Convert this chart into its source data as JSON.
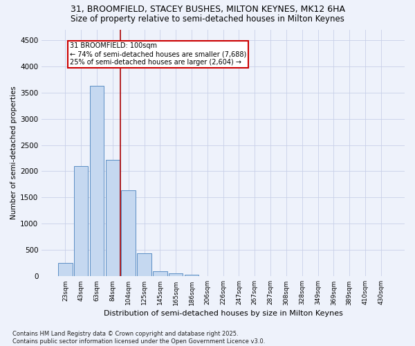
{
  "title_line1": "31, BROOMFIELD, STACEY BUSHES, MILTON KEYNES, MK12 6HA",
  "title_line2": "Size of property relative to semi-detached houses in Milton Keynes",
  "xlabel": "Distribution of semi-detached houses by size in Milton Keynes",
  "ylabel": "Number of semi-detached properties",
  "categories": [
    "23sqm",
    "43sqm",
    "63sqm",
    "84sqm",
    "104sqm",
    "125sqm",
    "145sqm",
    "165sqm",
    "186sqm",
    "206sqm",
    "226sqm",
    "247sqm",
    "267sqm",
    "287sqm",
    "308sqm",
    "328sqm",
    "349sqm",
    "369sqm",
    "389sqm",
    "410sqm",
    "430sqm"
  ],
  "values": [
    250,
    2100,
    3620,
    2220,
    1640,
    440,
    100,
    55,
    30,
    5,
    2,
    1,
    0,
    0,
    0,
    0,
    0,
    0,
    0,
    0,
    0
  ],
  "bar_color": "#c5d8f0",
  "bar_edge_color": "#5b8ec4",
  "annotation_title": "31 BROOMFIELD: 100sqm",
  "annotation_line1": "← 74% of semi-detached houses are smaller (7,688)",
  "annotation_line2": "25% of semi-detached houses are larger (2,604) →",
  "ylim": [
    0,
    4700
  ],
  "yticks": [
    0,
    500,
    1000,
    1500,
    2000,
    2500,
    3000,
    3500,
    4000,
    4500
  ],
  "footer_line1": "Contains HM Land Registry data © Crown copyright and database right 2025.",
  "footer_line2": "Contains public sector information licensed under the Open Government Licence v3.0.",
  "bg_color": "#eef2fb",
  "grid_color": "#c8d0e8",
  "annotation_box_color": "#ffffff",
  "annotation_box_edge": "#cc0000",
  "red_line_color": "#aa0000",
  "title_fontsize": 9,
  "subtitle_fontsize": 8.5,
  "red_line_x": 3.5
}
